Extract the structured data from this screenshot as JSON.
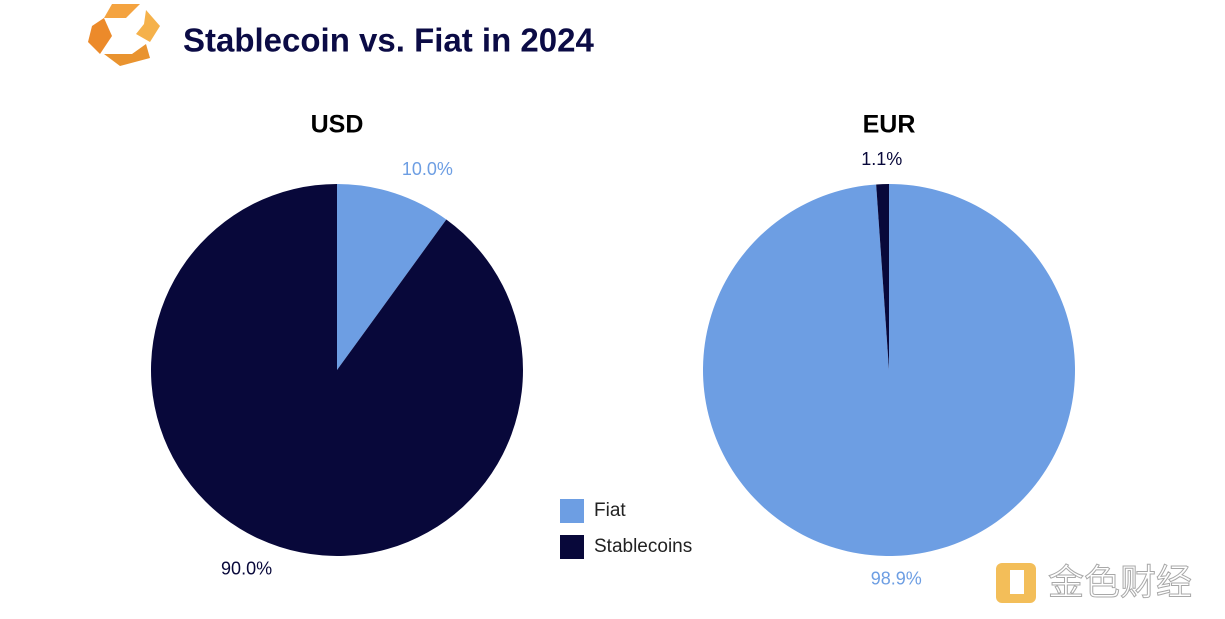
{
  "title": "Stablecoin vs. Fiat in 2024",
  "watermark": "金色财经",
  "chart_data": [
    {
      "type": "pie",
      "title": "USD",
      "categories": [
        "Fiat",
        "Stablecoins"
      ],
      "values": [
        10.0,
        90.0
      ],
      "value_labels": [
        "10.0%",
        "90.0%"
      ],
      "colors": [
        "#6d9ee3",
        "#08083a"
      ]
    },
    {
      "type": "pie",
      "title": "EUR",
      "categories": [
        "Fiat",
        "Stablecoins"
      ],
      "values": [
        98.9,
        1.1
      ],
      "value_labels": [
        "98.9%",
        "1.1%"
      ],
      "colors": [
        "#6d9ee3",
        "#08083a"
      ]
    }
  ]
}
